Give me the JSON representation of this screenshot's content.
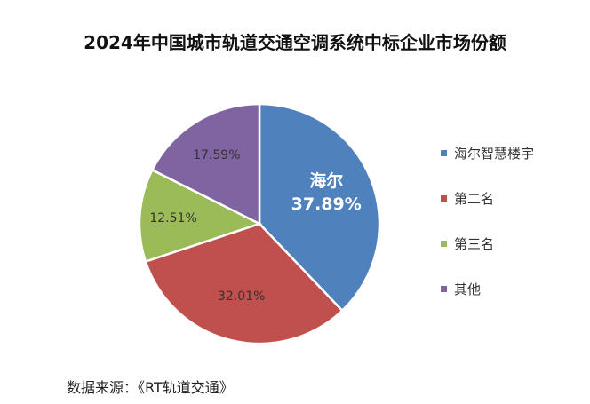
{
  "chart_data": {
    "type": "pie",
    "title": "2024年中国城市轨道交通空调系统中标企业市场份额",
    "categories": [
      "海尔智慧楼宇",
      "第二名",
      "第三名",
      "其他"
    ],
    "values": [
      37.89,
      32.01,
      12.51,
      17.59
    ],
    "data_labels": [
      "37.89%",
      "32.01%",
      "12.51%",
      "17.59%"
    ],
    "highlight_label": "海尔",
    "colors": [
      "#4F81BD",
      "#C0504D",
      "#9BBB59",
      "#8064A2"
    ],
    "legend_placement": "right"
  },
  "source": "数据来源：《RT轨道交通》"
}
